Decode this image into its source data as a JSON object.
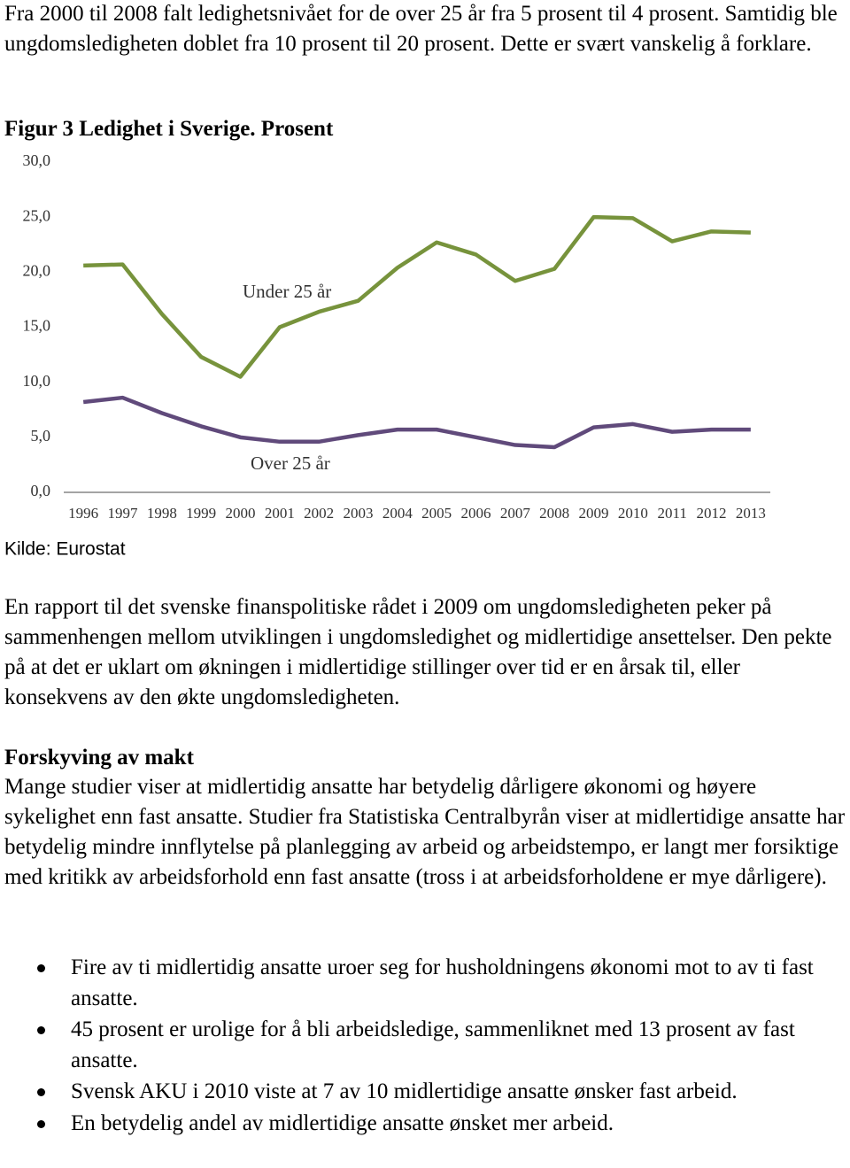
{
  "intro": "Fra 2000 til 2008 falt ledighetsnivået for de over 25 år fra 5 prosent til 4 prosent. Samtidig ble ungdomsledigheten doblet fra 10 prosent til 20 prosent. Dette er svært vanskelig å forklare.",
  "chart_data": {
    "type": "line",
    "title": "Figur 3 Ledighet i Sverige. Prosent",
    "source": "Kilde: Eurostat",
    "categories": [
      "1996",
      "1997",
      "1998",
      "1999",
      "2000",
      "2001",
      "2002",
      "2003",
      "2004",
      "2005",
      "2006",
      "2007",
      "2008",
      "2009",
      "2010",
      "2011",
      "2012",
      "2013"
    ],
    "series": [
      {
        "name": "Under 25 år",
        "color": "#77933c",
        "values": [
          20.6,
          20.7,
          16.2,
          12.3,
          10.5,
          15.0,
          16.4,
          17.4,
          20.4,
          22.7,
          21.6,
          19.2,
          20.3,
          25.0,
          24.9,
          22.8,
          23.7,
          23.6
        ]
      },
      {
        "name": "Over 25 år",
        "color": "#604a7b",
        "values": [
          8.2,
          8.6,
          7.2,
          6.0,
          5.0,
          4.6,
          4.6,
          5.2,
          5.7,
          5.7,
          5.0,
          4.3,
          4.1,
          5.9,
          6.2,
          5.5,
          5.7,
          5.7
        ]
      }
    ],
    "ylim": [
      0,
      30
    ],
    "yticks": [
      {
        "value": 0,
        "label": "0,0"
      },
      {
        "value": 5,
        "label": "5,0"
      },
      {
        "value": 10,
        "label": "10,0"
      },
      {
        "value": 15,
        "label": "15,0"
      },
      {
        "value": 20,
        "label": "20,0"
      },
      {
        "value": 25,
        "label": "25,0"
      },
      {
        "value": 30,
        "label": "30,0"
      }
    ],
    "grid": false
  },
  "paragraph": "En rapport til det svenske finanspolitiske rådet i 2009 om ungdomsledigheten peker på sammenhengen mellom utviklingen i ungdomsledighet og midlertidige ansettelser. Den pekte på at det er uklart om økningen i midlertidige stillinger over tid er en årsak til, eller konsekvens av den økte ungdomsledigheten.",
  "section": {
    "heading": "Forskyving av makt",
    "paragraph": "Mange studier viser at midlertidig ansatte har betydelig dårligere økonomi og høyere sykelighet enn fast ansatte. Studier fra Statistiska Centralbyrån viser at midlertidige ansatte har betydelig mindre innflytelse på planlegging av arbeid og arbeidstempo, er langt mer forsiktige med kritikk av arbeidsforhold enn fast ansatte (tross i at arbeidsforholdene er mye dårligere)."
  },
  "bullets": [
    "Fire av ti midlertidig ansatte uroer seg for husholdningens økonomi mot to av ti fast ansatte.",
    "45 prosent er urolige for å bli arbeidsledige, sammenliknet med 13 prosent av fast ansatte.",
    "Svensk AKU i 2010 viste at 7 av 10 midlertidige ansatte ønsker fast arbeid.",
    "En betydelig andel av midlertidige ansatte ønsket mer arbeid."
  ]
}
